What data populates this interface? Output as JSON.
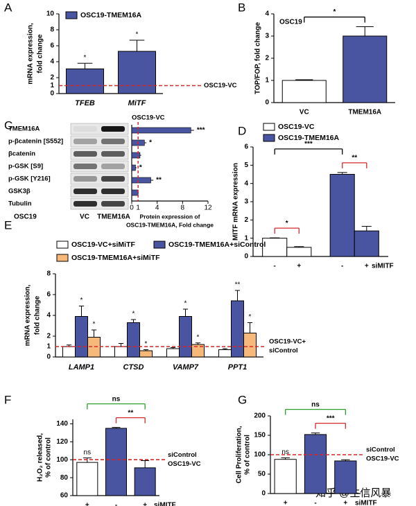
{
  "chart_data": [
    {
      "panel": "A",
      "type": "bar",
      "ylabel": [
        "mRNA expression,",
        "fold change"
      ],
      "categories": [
        "TFEB",
        "MiTF"
      ],
      "series": [
        {
          "name": "OSC19-TMEM16A",
          "color": "#4a55a2",
          "values": [
            3.1,
            5.3
          ],
          "errors": [
            0.7,
            1.4
          ]
        }
      ],
      "annotations": [
        "*",
        "*"
      ],
      "ylim": [
        0,
        10
      ],
      "yticks": [
        0,
        2,
        4,
        6,
        8,
        10
      ],
      "reference_line": {
        "value": 1,
        "label": [
          "OSC19-VC"
        ],
        "color": "#d62728"
      }
    },
    {
      "panel": "B",
      "type": "bar",
      "ylabel": [
        "TOP/FOP, fold change"
      ],
      "note": "OSC19",
      "categories": [
        "VC",
        "TMEM16A"
      ],
      "series": [
        {
          "colors": [
            "#ffffff",
            "#4a55a2"
          ],
          "values": [
            1.0,
            3.0
          ],
          "errors": [
            0.03,
            0.42
          ]
        }
      ],
      "ylim": [
        0,
        4
      ],
      "yticks": [
        0,
        1,
        2,
        3,
        4
      ],
      "comparisons": [
        {
          "from": 0,
          "to": 1,
          "label": "*",
          "color": "#000000"
        }
      ]
    },
    {
      "panel": "C",
      "type": "hbar",
      "blot_rows": [
        "TMEM16A",
        "p-βcatenin [S552]",
        "βcatenin",
        "p-GSK [S9]",
        "p-GSK [Y216]",
        "GSK3β",
        "Tubulin"
      ],
      "blot_row_title": "OSC19",
      "blot_columns": [
        "VC",
        "TMEM16A"
      ],
      "color": "#4a55a2",
      "values": [
        9.3,
        2.0,
        1.3,
        0.6,
        3.0,
        1.0
      ],
      "errors": [
        0.5,
        0.3,
        0.2,
        0.15,
        0.4,
        0.1
      ],
      "annotations": [
        "***",
        "*",
        null,
        "*",
        "**",
        null
      ],
      "xlim": [
        0,
        12
      ],
      "xticks": [
        0,
        4,
        8,
        12
      ],
      "xlabel": [
        "Protein expression of",
        "OSC19-TMEM16A, Fold change"
      ],
      "reference_line": {
        "value": 1,
        "label": [
          "OSC19-VC"
        ],
        "color": "#d62728"
      }
    },
    {
      "panel": "D",
      "type": "bar",
      "ylabel": [
        "MITF mRNA expression"
      ],
      "group_by": "series",
      "categories": [
        "-",
        "+"
      ],
      "x_label": "siMITF",
      "series": [
        {
          "name": "OSC19-VC",
          "color": "#ffffff",
          "values": [
            1.0,
            0.5
          ],
          "errors": [
            0.02,
            0.04
          ]
        },
        {
          "name": "OSC19-TMEM16A",
          "color": "#4a55a2",
          "values": [
            4.5,
            1.4
          ],
          "errors": [
            0.1,
            0.25
          ]
        }
      ],
      "ylim": [
        0,
        6
      ],
      "yticks": [
        0,
        1,
        2,
        3,
        4,
        5,
        6
      ],
      "comparisons": [
        {
          "from": 0,
          "to": 1,
          "label": "*",
          "color": "#d62728"
        },
        {
          "from": 2,
          "to": 3,
          "label": "**",
          "color": "#d62728"
        },
        {
          "from": 0,
          "to": 2,
          "label": "***",
          "color": "#000000"
        }
      ]
    },
    {
      "panel": "E",
      "type": "bar",
      "ylabel": [
        "mRNA expression,",
        "fold change"
      ],
      "categories": [
        "LAMP1",
        "CTSD",
        "VAMP7",
        "PPT1"
      ],
      "series": [
        {
          "name": "OSC19-VC+siMiTF",
          "color": "#ffffff",
          "values": [
            1.0,
            1.0,
            0.8,
            0.7
          ],
          "errors": [
            0.15,
            0.3,
            0.1,
            0.1
          ]
        },
        {
          "name": "OSC19-TMEM16A+siControl",
          "color": "#4a55a2",
          "values": [
            3.9,
            3.3,
            3.9,
            5.4
          ],
          "errors": [
            1.0,
            0.3,
            0.7,
            1.0
          ],
          "annotations": [
            "*",
            "*",
            "*",
            "**"
          ],
          "annotation_color": "#000000"
        },
        {
          "name": "OSC19-TMEM16A+siMiTF",
          "color": "#f6b97a",
          "values": [
            1.9,
            0.6,
            1.2,
            2.3
          ],
          "errors": [
            0.7,
            0.1,
            0.15,
            1.0
          ],
          "annotations": [
            "*",
            "*",
            "*",
            "*"
          ],
          "annotation_color": "#2ca02c"
        }
      ],
      "ylim": [
        0,
        8
      ],
      "yticks": [
        0,
        2,
        4,
        6,
        8
      ],
      "reference_line": {
        "value": 1,
        "label": [
          "OSC19-VC+",
          "siControl"
        ],
        "color": "#d62728"
      }
    },
    {
      "panel": "F",
      "type": "bar",
      "ylabel": [
        "H₂O₂ released,",
        "% of control"
      ],
      "categories": [
        "+",
        "-",
        "+"
      ],
      "x_label": "siMITF",
      "series": [
        {
          "colors": [
            "#ffffff",
            "#4a55a2",
            "#4a55a2"
          ],
          "values": [
            97,
            135,
            91
          ],
          "errors": [
            5,
            1,
            8
          ]
        }
      ],
      "annotations": [
        "ns",
        null,
        null
      ],
      "ylim": [
        60,
        145
      ],
      "yticks": [
        60,
        80,
        100,
        120,
        140
      ],
      "reference_line": {
        "value": 100,
        "label": [
          "siControl",
          "OSC19-VC"
        ],
        "color": "#d62728"
      },
      "comparisons": [
        {
          "from": 1,
          "to": 2,
          "label": "**",
          "color": "#d62728"
        },
        {
          "from": 0,
          "to": 2,
          "label": "ns",
          "color": "#2ca02c"
        }
      ]
    },
    {
      "panel": "G",
      "type": "bar",
      "ylabel": [
        "Cell Proliferation,",
        "% of control"
      ],
      "categories": [
        "+",
        "-",
        "+"
      ],
      "x_label": "siMITF",
      "series": [
        {
          "colors": [
            "#ffffff",
            "#4a55a2",
            "#4a55a2"
          ],
          "values": [
            88,
            152,
            84
          ],
          "errors": [
            4,
            4,
            3
          ]
        }
      ],
      "annotations": [
        "ns",
        null,
        null
      ],
      "ylim": [
        0,
        200
      ],
      "yticks": [
        0,
        50,
        100,
        150,
        200
      ],
      "reference_line": {
        "value": 100,
        "label": [
          "siControl",
          "OSC19-VC"
        ],
        "color": "#d62728"
      },
      "comparisons": [
        {
          "from": 1,
          "to": 2,
          "label": "***",
          "color": "#d62728"
        },
        {
          "from": 0,
          "to": 2,
          "label": "ns",
          "color": "#2ca02c"
        }
      ]
    }
  ],
  "watermark": "知乎 @生信风暴"
}
